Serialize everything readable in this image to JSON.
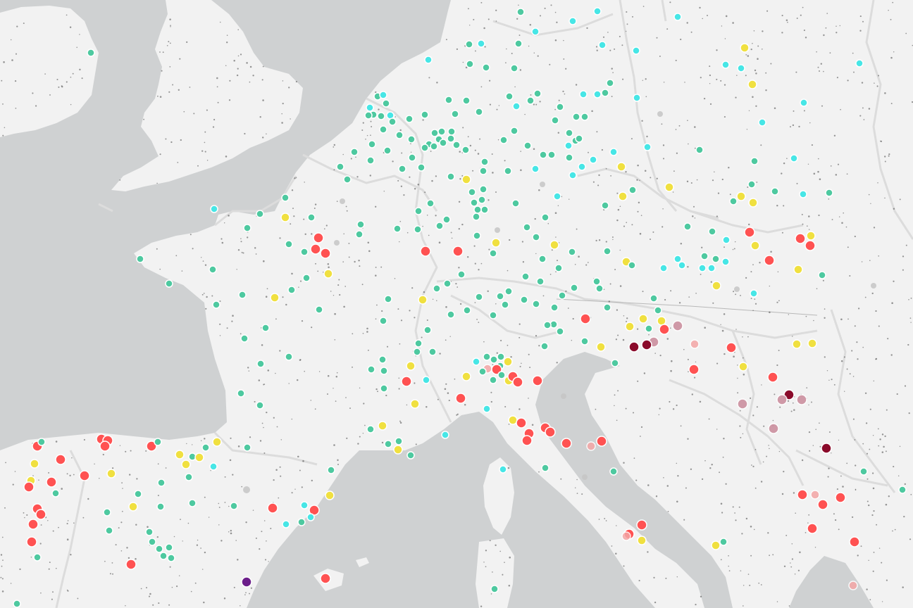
{
  "map": {
    "colors": {
      "water": "#cfd1d2",
      "land": "#f2f2f2",
      "border": "#dcdcdc",
      "marker_outline": "#ffffff",
      "town_dot": "#555555"
    },
    "legend_categories": [
      {
        "key": "green",
        "color": "#4ec9a0"
      },
      {
        "key": "cyan",
        "color": "#47e6e6"
      },
      {
        "key": "yellow",
        "color": "#f0e040"
      },
      {
        "key": "red",
        "color": "#ff5252"
      },
      {
        "key": "pink",
        "color": "#f4a6a6"
      },
      {
        "key": "mauve",
        "color": "#c98a9a"
      },
      {
        "key": "maroon",
        "color": "#8a0a2a"
      },
      {
        "key": "purple",
        "color": "#6c1e8a"
      },
      {
        "key": "grey",
        "color": "#c6c6c6"
      }
    ]
  }
}
